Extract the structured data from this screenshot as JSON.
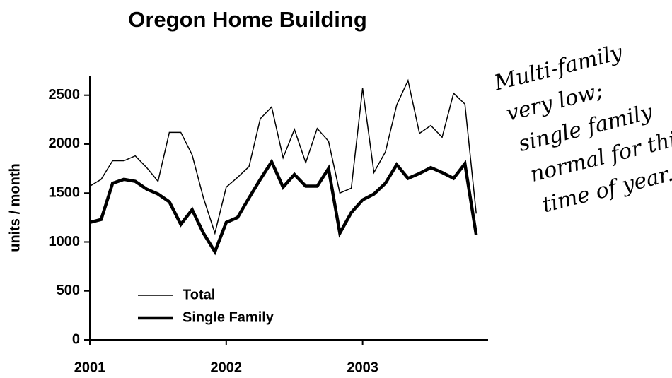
{
  "chart_data": {
    "type": "line",
    "title": "Oregon Home Building",
    "y_label": "units / month",
    "x": [
      2001,
      2001.083,
      2001.167,
      2001.25,
      2001.333,
      2001.417,
      2001.5,
      2001.583,
      2001.667,
      2001.75,
      2001.833,
      2001.917,
      2002,
      2002.083,
      2002.167,
      2002.25,
      2002.333,
      2002.417,
      2002.5,
      2002.583,
      2002.667,
      2002.75,
      2002.833,
      2002.917,
      2003,
      2003.083,
      2003.167,
      2003.25,
      2003.333,
      2003.417,
      2003.5,
      2003.583,
      2003.667,
      2003.75,
      2003.833
    ],
    "series": [
      {
        "name": "Total",
        "color": "#000000",
        "width": 1.5,
        "values": [
          1570,
          1640,
          1830,
          1830,
          1880,
          1760,
          1620,
          2120,
          2120,
          1890,
          1450,
          1090,
          1560,
          1660,
          1770,
          2260,
          2380,
          1860,
          2150,
          1810,
          2160,
          2030,
          1500,
          1550,
          2570,
          1710,
          1920,
          2400,
          2650,
          2110,
          2190,
          2070,
          2520,
          2410,
          1290
        ]
      },
      {
        "name": "Single Family",
        "color": "#000000",
        "width": 4.5,
        "values": [
          1200,
          1230,
          1600,
          1640,
          1620,
          1540,
          1490,
          1410,
          1180,
          1330,
          1090,
          900,
          1200,
          1250,
          1450,
          1640,
          1820,
          1560,
          1690,
          1570,
          1570,
          1750,
          1090,
          1300,
          1430,
          1490,
          1600,
          1790,
          1650,
          1700,
          1760,
          1710,
          1650,
          1800,
          1070
        ]
      }
    ],
    "xlim": [
      2001,
      2003.92
    ],
    "xticks": [
      2001,
      2002,
      2003
    ],
    "ylim": [
      0,
      2700
    ],
    "yticks": [
      0,
      500,
      1000,
      1500,
      2000,
      2500
    ],
    "grid": false,
    "legend": "lower left",
    "annotation": [
      "Multi-family",
      "very low;",
      "single family",
      "normal for this",
      "time of year."
    ]
  }
}
